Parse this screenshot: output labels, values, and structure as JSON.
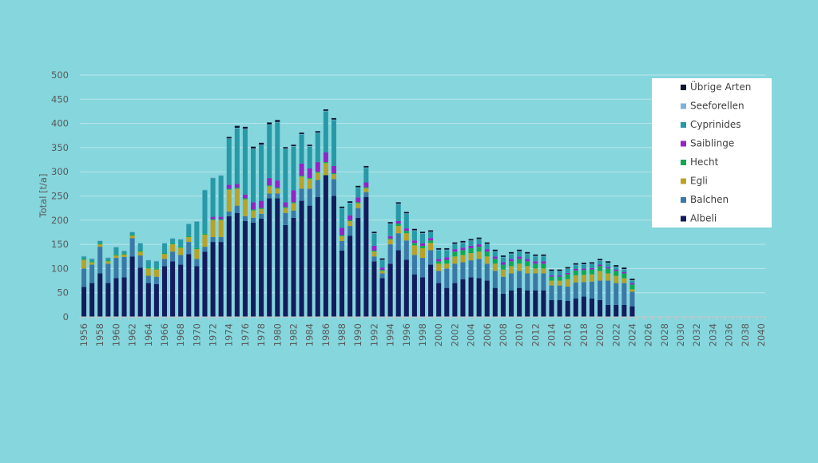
{
  "chart_data": {
    "type": "bar",
    "stacked": true,
    "title": "",
    "xlabel": "",
    "ylabel": "Total [t/a]",
    "ylim": [
      0,
      500
    ],
    "yticks": [
      0,
      50,
      100,
      150,
      200,
      250,
      300,
      350,
      400,
      450,
      500
    ],
    "xlim": [
      1956,
      2040
    ],
    "xtick_labels": [
      "1956",
      "1958",
      "1960",
      "1962",
      "1964",
      "1966",
      "1968",
      "1970",
      "1972",
      "1974",
      "1976",
      "1978",
      "1980",
      "1982",
      "1984",
      "1986",
      "1988",
      "1990",
      "1992",
      "1994",
      "1996",
      "1998",
      "2000",
      "2002",
      "2004",
      "2006",
      "2008",
      "2010",
      "2012",
      "2014",
      "2016",
      "2018",
      "2020",
      "2022",
      "2024",
      "2026",
      "2028",
      "2030",
      "2032",
      "2034",
      "2036",
      "2038",
      "2040"
    ],
    "grid": true,
    "legend_position": "right",
    "legend_order": [
      7,
      6,
      5,
      4,
      3,
      2,
      1,
      0
    ],
    "years": [
      1956,
      1957,
      1958,
      1959,
      1960,
      1961,
      1962,
      1963,
      1964,
      1965,
      1966,
      1967,
      1968,
      1969,
      1970,
      1971,
      1972,
      1973,
      1974,
      1975,
      1976,
      1977,
      1978,
      1979,
      1980,
      1981,
      1982,
      1983,
      1984,
      1985,
      1986,
      1987,
      1988,
      1989,
      1990,
      1991,
      1992,
      1993,
      1994,
      1995,
      1996,
      1997,
      1998,
      1999,
      2000,
      2001,
      2002,
      2003,
      2004,
      2005,
      2006,
      2007,
      2008,
      2009,
      2010,
      2011,
      2012,
      2013,
      2014,
      2015,
      2016,
      2017,
      2018,
      2019,
      2020,
      2021,
      2022,
      2023,
      2024
    ],
    "series": [
      {
        "name": "Albeli",
        "color": "#141c5e",
        "values": [
          62,
          70,
          90,
          70,
          80,
          82,
          125,
          102,
          70,
          68,
          105,
          115,
          108,
          130,
          105,
          135,
          155,
          155,
          208,
          215,
          198,
          195,
          203,
          245,
          245,
          190,
          205,
          240,
          230,
          248,
          293,
          250,
          137,
          168,
          205,
          248,
          115,
          80,
          110,
          138,
          118,
          88,
          82,
          108,
          70,
          60,
          70,
          78,
          82,
          80,
          75,
          60,
          48,
          55,
          60,
          55,
          55,
          55,
          35,
          35,
          33,
          38,
          42,
          38,
          35,
          25,
          25,
          25,
          22
        ]
      },
      {
        "name": "Balchen",
        "color": "#3b78a8",
        "values": [
          38,
          38,
          55,
          40,
          42,
          42,
          38,
          25,
          15,
          15,
          15,
          20,
          20,
          25,
          15,
          10,
          10,
          10,
          10,
          15,
          10,
          10,
          10,
          10,
          10,
          25,
          15,
          25,
          35,
          35,
          0,
          35,
          20,
          20,
          20,
          10,
          10,
          10,
          40,
          35,
          40,
          40,
          40,
          30,
          25,
          40,
          40,
          35,
          35,
          40,
          35,
          35,
          35,
          35,
          35,
          35,
          35,
          35,
          30,
          30,
          30,
          33,
          30,
          35,
          40,
          50,
          45,
          45,
          30
        ]
      },
      {
        "name": "Egli",
        "color": "#b9a227",
        "values": [
          18,
          5,
          5,
          5,
          5,
          5,
          5,
          8,
          15,
          15,
          10,
          15,
          15,
          10,
          20,
          25,
          35,
          35,
          45,
          35,
          35,
          15,
          10,
          15,
          10,
          10,
          15,
          25,
          20,
          15,
          25,
          10,
          10,
          10,
          10,
          8,
          10,
          5,
          10,
          15,
          15,
          20,
          20,
          15,
          15,
          10,
          15,
          15,
          15,
          15,
          15,
          15,
          15,
          15,
          15,
          15,
          10,
          10,
          10,
          10,
          15,
          15,
          15,
          15,
          20,
          15,
          15,
          10,
          5
        ]
      },
      {
        "name": "Hecht",
        "color": "#13a84f",
        "values": [
          2,
          2,
          2,
          2,
          2,
          2,
          2,
          2,
          2,
          2,
          2,
          2,
          2,
          2,
          2,
          2,
          2,
          2,
          2,
          2,
          2,
          2,
          2,
          2,
          2,
          2,
          2,
          2,
          2,
          2,
          2,
          2,
          2,
          2,
          2,
          2,
          2,
          2,
          2,
          5,
          5,
          5,
          5,
          5,
          5,
          8,
          10,
          10,
          10,
          10,
          10,
          10,
          10,
          10,
          10,
          10,
          10,
          10,
          8,
          8,
          10,
          10,
          10,
          10,
          10,
          10,
          10,
          10,
          10
        ]
      },
      {
        "name": "Saiblinge",
        "color": "#9523c6",
        "values": [
          0,
          0,
          0,
          0,
          0,
          0,
          0,
          0,
          0,
          0,
          0,
          0,
          0,
          0,
          0,
          0,
          5,
          5,
          8,
          8,
          8,
          15,
          15,
          15,
          15,
          10,
          25,
          25,
          20,
          20,
          20,
          15,
          15,
          10,
          10,
          10,
          10,
          5,
          5,
          5,
          5,
          5,
          5,
          5,
          5,
          5,
          5,
          5,
          5,
          5,
          5,
          5,
          5,
          5,
          5,
          5,
          5,
          5,
          3,
          3,
          3,
          3,
          3,
          3,
          3,
          3,
          3,
          3,
          3
        ]
      },
      {
        "name": "Cyprinides",
        "color": "#2899a6",
        "values": [
          5,
          5,
          5,
          5,
          15,
          5,
          5,
          15,
          15,
          15,
          20,
          10,
          15,
          25,
          55,
          90,
          80,
          85,
          95,
          115,
          135,
          110,
          115,
          110,
          120,
          110,
          90,
          60,
          45,
          60,
          85,
          95,
          40,
          25,
          20,
          30,
          25,
          15,
          25,
          35,
          30,
          20,
          20,
          12,
          18,
          15,
          10,
          10,
          10,
          10,
          10,
          10,
          10,
          10,
          10,
          10,
          10,
          10,
          8,
          8,
          8,
          8,
          8,
          8,
          8,
          8,
          5,
          5,
          5
        ]
      },
      {
        "name": "Seeforellen",
        "color": "#7fb0d8",
        "values": [
          1,
          1,
          1,
          1,
          1,
          1,
          1,
          1,
          1,
          1,
          1,
          1,
          1,
          1,
          1,
          1,
          1,
          1,
          1,
          1,
          1,
          1,
          1,
          1,
          1,
          1,
          1,
          1,
          1,
          1,
          1,
          1,
          1,
          1,
          1,
          1,
          1,
          1,
          1,
          1,
          1,
          1,
          1,
          1,
          1,
          1,
          1,
          1,
          1,
          1,
          1,
          1,
          1,
          1,
          1,
          1,
          1,
          1,
          1,
          1,
          1,
          1,
          1,
          1,
          1,
          1,
          1,
          1,
          1
        ]
      },
      {
        "name": "Übrige Arten",
        "color": "#0b1530",
        "values": [
          0,
          0,
          0,
          0,
          0,
          0,
          0,
          0,
          0,
          0,
          0,
          0,
          0,
          0,
          0,
          0,
          0,
          0,
          3,
          4,
          4,
          4,
          4,
          4,
          4,
          3,
          3,
          3,
          3,
          3,
          3,
          3,
          3,
          3,
          3,
          3,
          3,
          3,
          3,
          3,
          3,
          3,
          3,
          3,
          3,
          3,
          3,
          3,
          3,
          3,
          3,
          3,
          3,
          3,
          3,
          3,
          3,
          3,
          3,
          3,
          3,
          3,
          3,
          3,
          3,
          3,
          3,
          3,
          3
        ]
      }
    ]
  }
}
